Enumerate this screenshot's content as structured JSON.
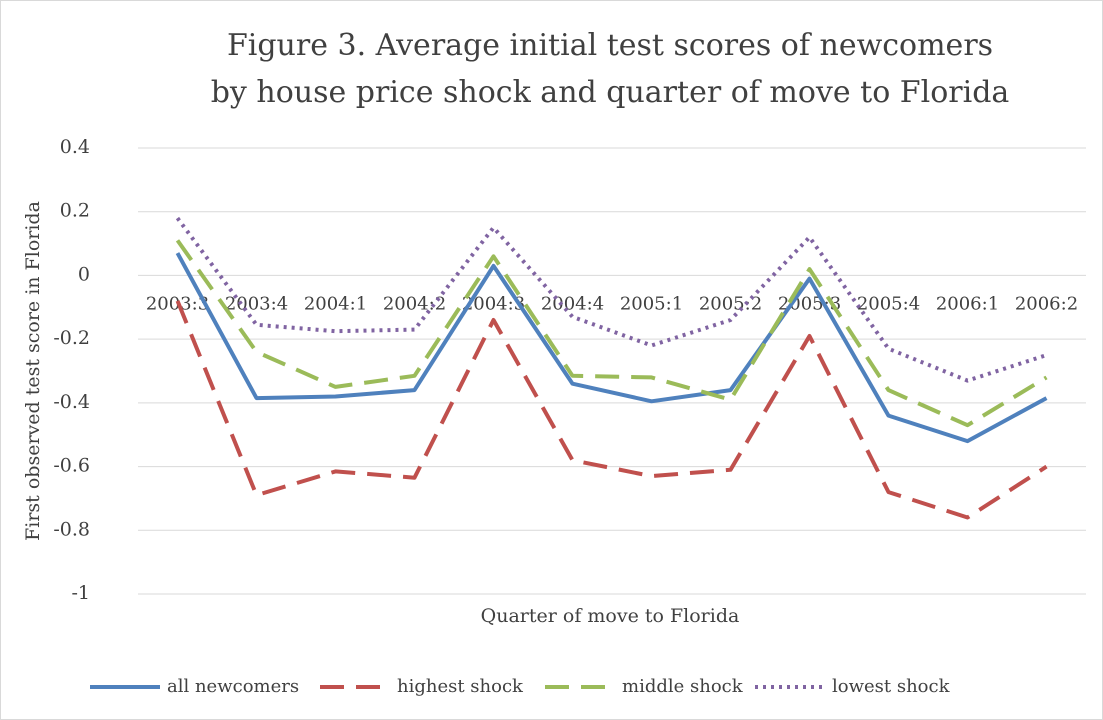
{
  "chart_data": {
    "type": "line",
    "title": [
      "Figure 3. Average initial test scores of newcomers",
      "by house price shock and quarter of move to Florida"
    ],
    "x_label": "Quarter of move to Florida",
    "y_label": "First observed test score in Florida",
    "categories": [
      "2003:3",
      "2003:4",
      "2004:1",
      "2004:2",
      "2004:3",
      "2004:4",
      "2005:1",
      "2005:2",
      "2005:3",
      "2005:4",
      "2006:1",
      "2006:2"
    ],
    "ylim": [
      -1,
      0.4
    ],
    "yticks": [
      -1,
      -0.8,
      -0.6,
      -0.4,
      -0.2,
      0,
      0.2,
      0.4
    ],
    "grid": true,
    "legend": "bottom",
    "series": [
      {
        "name": "all newcomers",
        "color": "#4f81bd",
        "dash": "solid",
        "values": [
          0.07,
          -0.385,
          -0.38,
          -0.36,
          0.03,
          -0.34,
          -0.395,
          -0.36,
          -0.01,
          -0.44,
          -0.52,
          -0.385
        ]
      },
      {
        "name": "highest shock",
        "color": "#c0504d",
        "dash": "dashed",
        "values": [
          -0.08,
          -0.69,
          -0.615,
          -0.635,
          -0.14,
          -0.58,
          -0.63,
          -0.61,
          -0.19,
          -0.68,
          -0.76,
          -0.6
        ]
      },
      {
        "name": "middle shock",
        "color": "#9bbb59",
        "dash": "dashed",
        "values": [
          0.11,
          -0.24,
          -0.35,
          -0.315,
          0.06,
          -0.315,
          -0.32,
          -0.39,
          0.02,
          -0.36,
          -0.47,
          -0.32
        ]
      },
      {
        "name": "lowest shock",
        "color": "#8064a2",
        "dash": "dotted",
        "values": [
          0.18,
          -0.155,
          -0.175,
          -0.17,
          0.15,
          -0.13,
          -0.22,
          -0.14,
          0.12,
          -0.23,
          -0.33,
          -0.25
        ]
      }
    ]
  }
}
